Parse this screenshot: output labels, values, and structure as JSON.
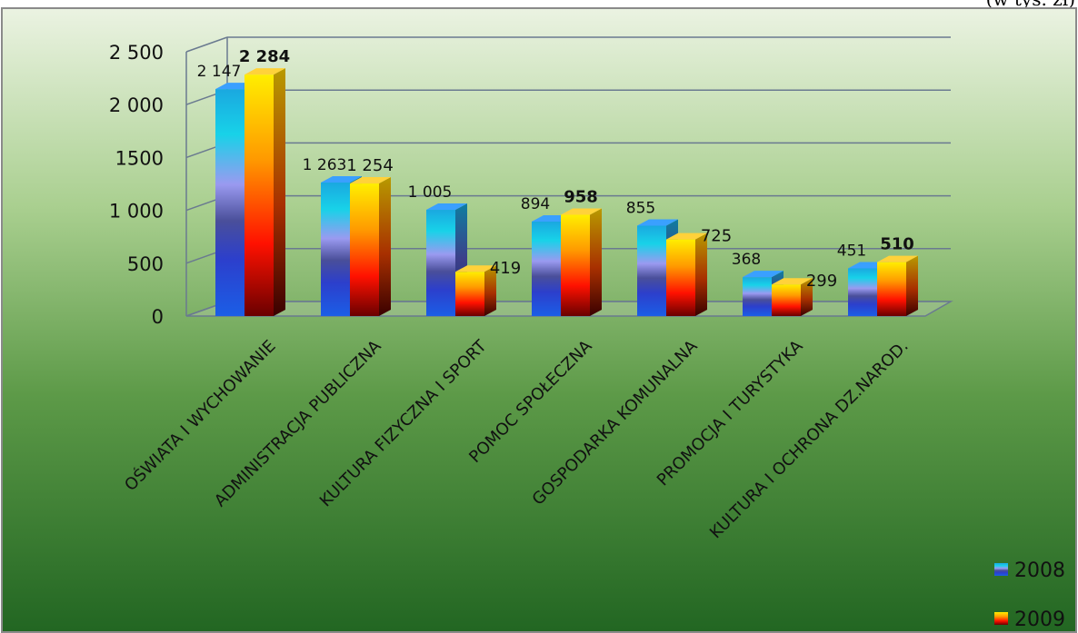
{
  "corner_text": "(w tys. zł)",
  "colors": {
    "series_2008": [
      "#1b5ee6",
      "#4a3fb0",
      "#9a9af0",
      "#18d2e8"
    ],
    "series_2009": [
      "#7a0000",
      "#ff0000",
      "#ff9900",
      "#ffee00"
    ]
  },
  "chart_data": {
    "type": "bar",
    "title": "",
    "xlabel": "",
    "ylabel": "",
    "ylim": [
      0,
      2500
    ],
    "yticks": [
      0,
      500,
      1000,
      1500,
      2000,
      2500
    ],
    "ytick_labels": [
      "0",
      "500",
      "1 000",
      "1500",
      "2 000",
      "2 500"
    ],
    "grid": true,
    "legend_position": "bottom-right",
    "categories": [
      "OŚWIATA I WYCHOWANIE",
      "ADMINISTRACJA PUBLICZNA",
      "KULTURA FIZYCZNA I SPORT",
      "POMOC SPOŁECZNA",
      "GOSPODARKA KOMUNALNA",
      "PROMOCJA I TURYSTYKA",
      "KULTURA I OCHRONA DZ.NAROD."
    ],
    "series": [
      {
        "name": "2008",
        "values": [
          2147,
          1263,
          1005,
          894,
          855,
          368,
          451
        ],
        "labels": [
          "2 147",
          "1 263",
          "1 005",
          "894",
          "855",
          "368",
          "451"
        ]
      },
      {
        "name": "2009",
        "values": [
          2284,
          1254,
          419,
          958,
          725,
          299,
          510
        ],
        "labels": [
          "2 284",
          "1 254",
          "419",
          "958",
          "725",
          "299",
          "510"
        ]
      }
    ]
  }
}
